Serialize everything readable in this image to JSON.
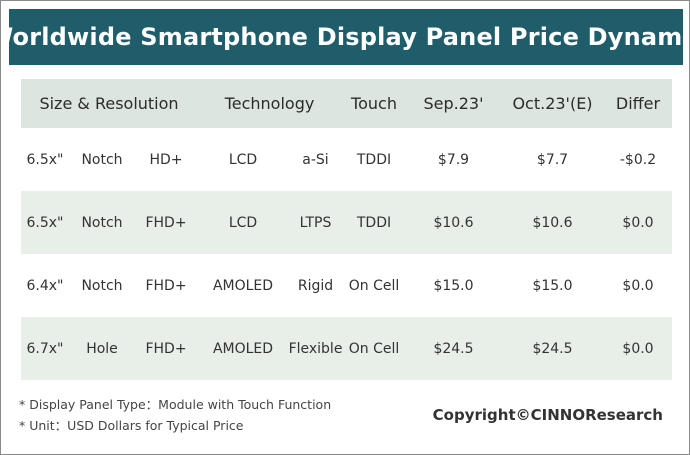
{
  "title": "Worldwide Smartphone Display Panel Price Dynamic",
  "header": {
    "size_resolution": "Size & Resolution",
    "technology": "Technology",
    "touch": "Touch",
    "sep23": "Sep.23'",
    "oct23": "Oct.23'(E)",
    "differ": "Differ"
  },
  "rows": [
    {
      "size": "6.5x\"",
      "shape": "Notch",
      "resolution": "HD+",
      "tech": "LCD",
      "tech_sub": "a-Si",
      "touch": "TDDI",
      "sep23": "$7.9",
      "oct23": "$7.7",
      "differ": "-$0.2"
    },
    {
      "size": "6.5x\"",
      "shape": "Notch",
      "resolution": "FHD+",
      "tech": "LCD",
      "tech_sub": "LTPS",
      "touch": "TDDI",
      "sep23": "$10.6",
      "oct23": "$10.6",
      "differ": "$0.0"
    },
    {
      "size": "6.4x\"",
      "shape": "Notch",
      "resolution": "FHD+",
      "tech": "AMOLED",
      "tech_sub": "Rigid",
      "touch": "On Cell",
      "sep23": "$15.0",
      "oct23": "$15.0",
      "differ": "$0.0"
    },
    {
      "size": "6.7x\"",
      "shape": "Hole",
      "resolution": "FHD+",
      "tech": "AMOLED",
      "tech_sub": "Flexible",
      "touch": "On Cell",
      "sep23": "$24.5",
      "oct23": "$24.5",
      "differ": "$0.0"
    }
  ],
  "notes": [
    "* Display Panel Type：Module with Touch Function",
    "* Unit：USD Dollars for Typical Price"
  ],
  "copyright": "Copyright©CINNOResearch",
  "colors": {
    "title_bg": "#1f5d6b",
    "header_bg": "#dde5e0",
    "alt_row_bg": "#e8eee8"
  }
}
